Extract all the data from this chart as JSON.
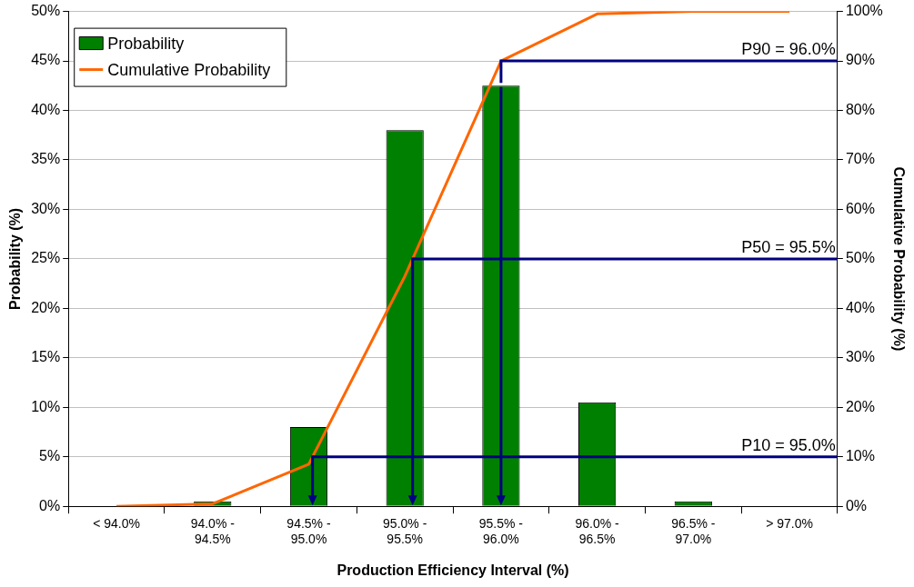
{
  "chart_data": {
    "type": "bar",
    "xlabel": "Production Efficiency Interval (%)",
    "ylabel": "Probability (%)",
    "y2label": "Cumulative Probability (%)",
    "categories": [
      "< 94.0%",
      "94.0% - 94.5%",
      "94.5% - 95.0%",
      "95.0% - 95.5%",
      "95.5% - 96.0%",
      "96.0% - 96.5%",
      "96.5% - 97.0%",
      "> 97.0%"
    ],
    "series": [
      {
        "name": "Probability",
        "color": "#008000",
        "values": [
          0,
          0.5,
          8,
          38,
          42.5,
          10.5,
          0.5,
          0
        ]
      },
      {
        "name": "Cumulative Probability",
        "type": "line",
        "axis": "y2",
        "color": "#ff6600",
        "values": [
          0,
          0.5,
          8.5,
          46.5,
          90,
          99.5,
          100,
          100
        ]
      }
    ],
    "ylim": [
      0,
      50
    ],
    "yticks": [
      {
        "value": 0,
        "label": "0%"
      },
      {
        "value": 5,
        "label": "5%"
      },
      {
        "value": 10,
        "label": "10%"
      },
      {
        "value": 15,
        "label": "15%"
      },
      {
        "value": 20,
        "label": "20%"
      },
      {
        "value": 25,
        "label": "25%"
      },
      {
        "value": 30,
        "label": "30%"
      },
      {
        "value": 35,
        "label": "35%"
      },
      {
        "value": 40,
        "label": "40%"
      },
      {
        "value": 45,
        "label": "45%"
      },
      {
        "value": 50,
        "label": "50%"
      }
    ],
    "y2lim": [
      0,
      100
    ],
    "y2ticks": [
      {
        "value": 0,
        "label": "0%"
      },
      {
        "value": 10,
        "label": "10%"
      },
      {
        "value": 20,
        "label": "20%"
      },
      {
        "value": 30,
        "label": "30%"
      },
      {
        "value": 40,
        "label": "40%"
      },
      {
        "value": 50,
        "label": "50%"
      },
      {
        "value": 60,
        "label": "60%"
      },
      {
        "value": 70,
        "label": "70%"
      },
      {
        "value": 80,
        "label": "80%"
      },
      {
        "value": 90,
        "label": "90%"
      },
      {
        "value": 100,
        "label": "100%"
      }
    ],
    "ref_lines": [
      {
        "axis": "y2",
        "value": 90,
        "label": "P90 = 96.0%",
        "color": "#000080"
      },
      {
        "axis": "y2",
        "value": 50,
        "label": "P50 = 95.5%",
        "color": "#000080"
      },
      {
        "axis": "y2",
        "value": 10,
        "label": "P10 = 95.0%",
        "color": "#000080"
      }
    ],
    "grid": "y",
    "legend": "top left",
    "marker": "none",
    "line_style": "solid"
  }
}
